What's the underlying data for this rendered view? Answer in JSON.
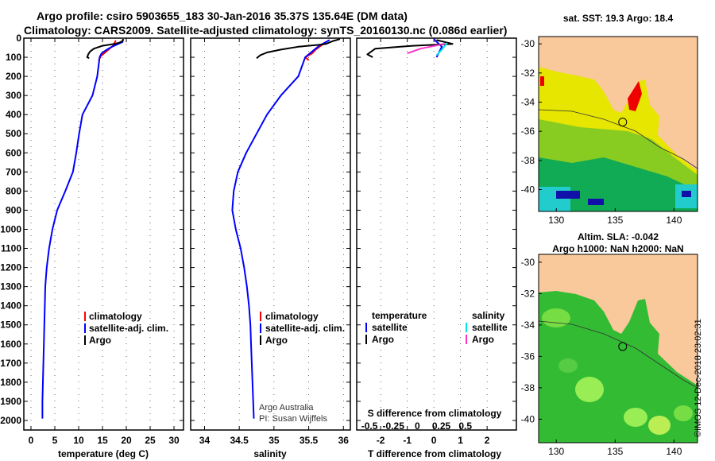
{
  "header": {
    "title_line1": "Argo profile: csiro 5903655_183 30-Jan-2016 35.37S 135.64E (DM data)",
    "title_line2": "Climatology: CARS2009. Satellite-adjusted climatology: synTS_20160130.nc (0.086d earlier)"
  },
  "colors": {
    "argo": "#000000",
    "climatology": "#ff0000",
    "satellite": "#0000ff",
    "sat_salinity": "#00e5e5",
    "argo_salinity": "#ff33cc",
    "land": "#f9c89b"
  },
  "chart_data": [
    {
      "type": "line",
      "name": "temperature-profile",
      "xlabel": "temperature (deg C)",
      "ylabel": "depth",
      "xlim": [
        -1.5,
        32
      ],
      "ylim": [
        2050,
        0
      ],
      "xticks": [
        "0",
        "5",
        "10",
        "15",
        "20",
        "25",
        "30"
      ],
      "yticks": [
        "0",
        "100",
        "200",
        "300",
        "400",
        "500",
        "600",
        "700",
        "800",
        "900",
        "1000",
        "1100",
        "1200",
        "1300",
        "1400",
        "1500",
        "1600",
        "1700",
        "1800",
        "1900",
        "2000"
      ],
      "legend": [
        "climatology",
        "satellite-adj. clim.",
        "Argo"
      ],
      "series": [
        {
          "name": "climatology",
          "color": "#ff0000",
          "points": [
            [
              17.8,
              12
            ],
            [
              17.2,
              40
            ],
            [
              15.8,
              70
            ],
            [
              14.6,
              95
            ],
            [
              14.2,
              120
            ]
          ]
        },
        {
          "name": "satellite-adj. clim.",
          "color": "#0000ff",
          "points": [
            [
              19.3,
              5
            ],
            [
              19.2,
              20
            ],
            [
              17.0,
              45
            ],
            [
              15.8,
              62
            ],
            [
              14.8,
              80
            ],
            [
              14.4,
              100
            ],
            [
              13.9,
              200
            ],
            [
              12.9,
              300
            ],
            [
              10.8,
              400
            ],
            [
              10.1,
              500
            ],
            [
              9.5,
              600
            ],
            [
              8.8,
              700
            ],
            [
              7.2,
              800
            ],
            [
              5.5,
              900
            ],
            [
              4.5,
              1000
            ],
            [
              3.8,
              1100
            ],
            [
              3.3,
              1200
            ],
            [
              3.0,
              1300
            ],
            [
              2.9,
              1400
            ],
            [
              2.8,
              1500
            ],
            [
              2.7,
              1600
            ],
            [
              2.6,
              1700
            ],
            [
              2.5,
              1800
            ],
            [
              2.4,
              1900
            ],
            [
              2.4,
              1990
            ]
          ]
        },
        {
          "name": "Argo",
          "color": "#000000",
          "points": [
            [
              19.4,
              5
            ],
            [
              19.2,
              15
            ],
            [
              18.4,
              25
            ],
            [
              17.5,
              30
            ],
            [
              15.0,
              40
            ],
            [
              13.2,
              55
            ],
            [
              12.4,
              70
            ],
            [
              12.0,
              85
            ],
            [
              11.8,
              100
            ],
            [
              12.2,
              105
            ]
          ]
        }
      ]
    },
    {
      "type": "line",
      "name": "salinity-profile",
      "xlabel": "salinity",
      "xlim": [
        33.8,
        36.1
      ],
      "ylim": [
        2050,
        0
      ],
      "xticks": [
        "34",
        "34.5",
        "35",
        "35.5",
        "36"
      ],
      "legend": [
        "climatology",
        "satellite-adj. clim.",
        "Argo"
      ],
      "credit": [
        "Argo Australia",
        "PI: Susan Wijffels"
      ],
      "series": [
        {
          "name": "climatology",
          "color": "#ff0000",
          "points": [
            [
              35.75,
              20
            ],
            [
              35.6,
              60
            ],
            [
              35.55,
              80
            ],
            [
              35.45,
              100
            ],
            [
              35.5,
              115
            ]
          ]
        },
        {
          "name": "satellite-adj. clim.",
          "color": "#0000ff",
          "points": [
            [
              35.8,
              10
            ],
            [
              35.65,
              40
            ],
            [
              35.55,
              70
            ],
            [
              35.45,
              100
            ],
            [
              35.35,
              200
            ],
            [
              35.1,
              300
            ],
            [
              34.9,
              400
            ],
            [
              34.75,
              500
            ],
            [
              34.6,
              600
            ],
            [
              34.48,
              700
            ],
            [
              34.42,
              800
            ],
            [
              34.4,
              900
            ],
            [
              34.45,
              1000
            ],
            [
              34.52,
              1100
            ],
            [
              34.57,
              1200
            ],
            [
              34.61,
              1300
            ],
            [
              34.64,
              1400
            ],
            [
              34.66,
              1500
            ],
            [
              34.67,
              1600
            ],
            [
              34.68,
              1700
            ],
            [
              34.69,
              1800
            ],
            [
              34.7,
              1900
            ],
            [
              34.71,
              1990
            ]
          ]
        },
        {
          "name": "Argo",
          "color": "#000000",
          "points": [
            [
              35.95,
              5
            ],
            [
              35.85,
              15
            ],
            [
              35.75,
              30
            ],
            [
              35.65,
              35
            ],
            [
              35.35,
              45
            ],
            [
              35.1,
              60
            ],
            [
              34.9,
              75
            ],
            [
              34.8,
              90
            ],
            [
              34.75,
              105
            ]
          ]
        }
      ]
    },
    {
      "type": "line",
      "name": "difference-profile",
      "xlabel": "T difference from climatology",
      "xlabel_top": "S difference from climatology",
      "xlim": [
        -2.9,
        3.1
      ],
      "ylim": [
        2050,
        0
      ],
      "xticks": [
        "-2",
        "-1",
        "0",
        "1",
        "2"
      ],
      "xticks_top": [
        "-0.5",
        "-0.25",
        "0",
        "0.25",
        "0.5"
      ],
      "legend_temperature": {
        "title": "temperature",
        "items": [
          "satellite",
          "Argo"
        ]
      },
      "legend_salinity": {
        "title": "salinity",
        "items": [
          "satellite",
          "Argo"
        ]
      },
      "series": [
        {
          "name": "T satellite",
          "color": "#0000ff",
          "points": [
            [
              0,
              5
            ],
            [
              0.3,
              45
            ],
            [
              0.1,
              100
            ]
          ]
        },
        {
          "name": "T Argo",
          "color": "#000000",
          "points": [
            [
              0.1,
              10
            ],
            [
              0.7,
              30
            ],
            [
              -0.8,
              40
            ],
            [
              -2.2,
              55
            ],
            [
              -2.5,
              85
            ],
            [
              -2.3,
              100
            ]
          ]
        },
        {
          "name": "S satellite",
          "color": "#00e5e5",
          "points": [
            [
              0.5,
              25
            ],
            [
              0.3,
              60
            ],
            [
              0.1,
              90
            ]
          ]
        },
        {
          "name": "S Argo",
          "color": "#ff33cc",
          "points": [
            [
              0.4,
              30
            ],
            [
              -0.5,
              55
            ],
            [
              -1.0,
              80
            ]
          ]
        }
      ]
    },
    {
      "type": "heatmap",
      "name": "sst-map",
      "title": "sat. SST: 19.3 Argo: 18.4",
      "xlim": [
        128.5,
        142
      ],
      "ylim": [
        -41.5,
        -29.5
      ],
      "xticks": [
        "130",
        "135",
        "140"
      ],
      "yticks": [
        "-30",
        "-32",
        "-34",
        "-36",
        "-38",
        "-40"
      ],
      "float_location": [
        135.64,
        -35.37
      ]
    },
    {
      "type": "heatmap",
      "name": "sla-map",
      "title_line1": "Altim. SLA: -0.042",
      "title_line2": "Argo h1000: NaN h2000: NaN",
      "xlim": [
        128.5,
        142
      ],
      "ylim": [
        -41.5,
        -29.5
      ],
      "xticks": [
        "130",
        "135",
        "140"
      ],
      "yticks": [
        "-30",
        "-32",
        "-34",
        "-36",
        "-38",
        "-40"
      ],
      "float_location": [
        135.64,
        -35.37
      ]
    }
  ],
  "footer": {
    "stamp": "©IMOS 12-Dec-2018 23:02:31"
  }
}
